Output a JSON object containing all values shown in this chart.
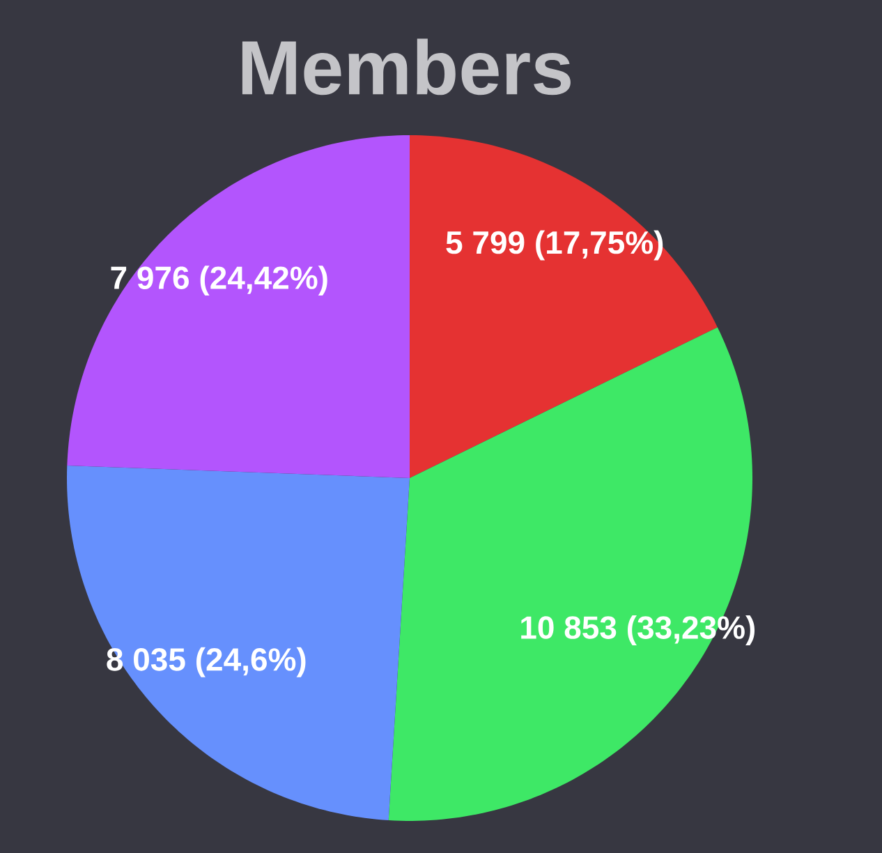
{
  "chart_data": {
    "type": "pie",
    "title": "Members",
    "categories": [
      null,
      null,
      null,
      null
    ],
    "values": [
      5799,
      10853,
      8035,
      7976
    ],
    "colors": [
      "#e53232",
      "#3ee866",
      "#6690fd",
      "#b355fd"
    ],
    "value_labels": [
      "5 799 (17,75%)",
      "10 853 (33,23%)",
      "8 035 (24,6%)",
      "7 976 (24,42%)"
    ]
  }
}
